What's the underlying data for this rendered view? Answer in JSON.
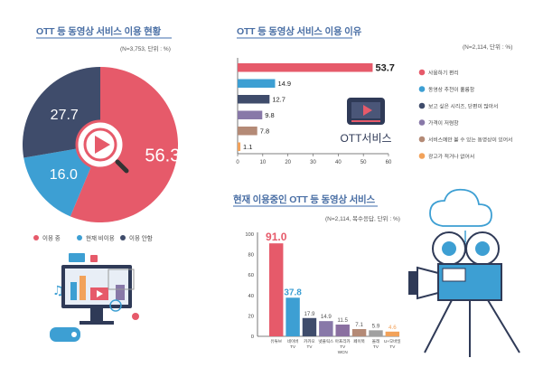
{
  "colors": {
    "red": "#e65a6a",
    "blue": "#3d9fd3",
    "navy": "#3f4c6b",
    "purple": "#8878a8",
    "brown": "#b48a76",
    "orange": "#f2a25a",
    "title": "#4a6fa5"
  },
  "panel1": {
    "title": "OTT 등 동영상 서비스 이용 현황",
    "note": "(N=3,753, 단위 : %)"
  },
  "panel2": {
    "title": "OTT 등 동영상 서비스 이용 이유",
    "note": "(N=2,114, 단위 : %)",
    "badge": "OTT서비스"
  },
  "panel3": {
    "title": "현재 이용중인 OTT 등 동영상 서비스",
    "note": "(N=2,114, 복수응답, 단위 : %)"
  },
  "chart_data": [
    {
      "type": "pie",
      "title": "OTT 등 동영상 서비스 이용 현황",
      "categories": [
        "이용 중",
        "현재 비이용",
        "이용 안함"
      ],
      "values": [
        56.3,
        16.0,
        27.7
      ],
      "value_labels": [
        "56.3",
        "16.0",
        "27.7"
      ],
      "colors": [
        "#e65a6a",
        "#3d9fd3",
        "#3f4c6b"
      ],
      "legend": "bottom"
    },
    {
      "type": "bar",
      "orientation": "horizontal",
      "title": "OTT 등 동영상 서비스 이용 이유",
      "categories": [
        "사용하기 편리",
        "동영상 추천이 훌륭함",
        "보고 싶은 시리즈, 단편이 많아서",
        "가격이 저렴함",
        "서비스에만 볼 수 있는 동영상이 있어서",
        "광고가 적거나 없어서"
      ],
      "values": [
        53.7,
        14.9,
        12.7,
        9.8,
        7.8,
        1.1
      ],
      "value_labels": [
        "53.7",
        "14.9",
        "12.7",
        "9.8",
        "7.8",
        "1.1"
      ],
      "colors": [
        "#e65a6a",
        "#3d9fd3",
        "#3f4c6b",
        "#8878a8",
        "#b48a76",
        "#f2a25a"
      ],
      "xlim": [
        0,
        60
      ],
      "xticks": [
        "0",
        "10",
        "20",
        "30",
        "40",
        "50",
        "60"
      ],
      "legend": "right"
    },
    {
      "type": "bar",
      "title": "현재 이용중인 OTT 등 동영상 서비스",
      "categories": [
        "유튜브",
        "네이버 TV",
        "카카오 TV",
        "넷플릭스",
        "아프리카 TV WCN",
        "페이북",
        "올레 TV",
        "U+모바일 TV"
      ],
      "values": [
        91.0,
        37.8,
        17.9,
        14.9,
        11.5,
        7.1,
        5.9,
        4.6
      ],
      "value_labels": [
        "91.0",
        "37.8",
        "17.9",
        "14.9",
        "11.5",
        "7.1",
        "5.9",
        "4.6"
      ],
      "colors": [
        "#e65a6a",
        "#3d9fd3",
        "#3f4c6b",
        "#8878a8",
        "#8a6fa0",
        "#b48a76",
        "#a0a0a0",
        "#f2a25a"
      ],
      "ylim": [
        0,
        100
      ],
      "yticks": [
        "0",
        "20",
        "40",
        "60",
        "80",
        "100"
      ]
    }
  ]
}
